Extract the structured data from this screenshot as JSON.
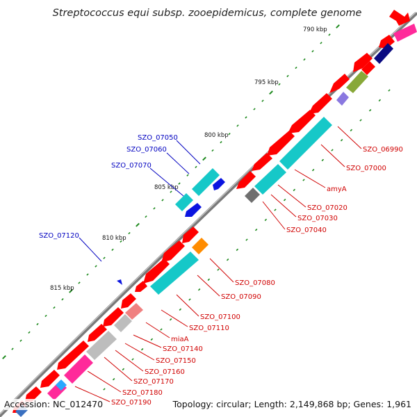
{
  "title": "Streptococcus equi subsp. zooepidemicus, complete genome",
  "accession": "Accession: NC_012470",
  "stats": "Topology: circular; Length: 2,149,868 bp; Genes: 1,961",
  "colors": {
    "backbone": "#7a7a7a",
    "tick": "#1e8a1e",
    "red_label": "#d00000",
    "blue_label": "#0000c0",
    "forward_gene": "#ff0000",
    "cds_cyan": "#16c8c8",
    "cds_blue": "#0a14e0",
    "cds_magenta": "#ff2a9a",
    "cds_olive": "#88a838",
    "cds_navy": "#0a0a80",
    "cds_purple": "#8a78e0",
    "cds_orange": "#ff8c00",
    "cds_pink": "#f08080",
    "cds_gray": "#bdbdbd",
    "cds_darkgray": "#6f6f6f"
  },
  "scale_labels": [
    "790 kbp",
    "795 kbp",
    "800 kbp",
    "805 kbp",
    "810 kbp",
    "815 kbp"
  ],
  "gene_labels_right": [
    "SZO_06990",
    "SZO_07000",
    "amyA",
    "SZO_07020",
    "SZO_07030",
    "SZO_07040",
    "SZO_07080",
    "SZO_07090",
    "SZO_07100",
    "SZO_07110",
    "miaA",
    "SZO_07140",
    "SZO_07150",
    "SZO_07160",
    "SZO_07170",
    "SZO_07180",
    "SZO_07190"
  ],
  "gene_labels_left": [
    "SZO_07050",
    "SZO_07060",
    "SZO_07070",
    "SZO_07120"
  ]
}
